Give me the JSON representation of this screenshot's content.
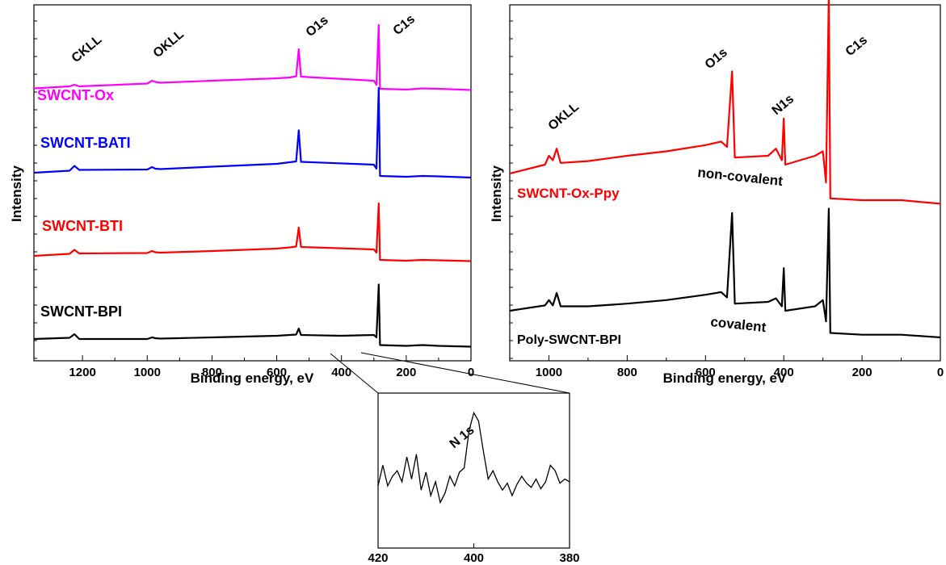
{
  "chart_data": [
    {
      "type": "line",
      "panel": "left",
      "xlabel": "Binding energy, eV",
      "ylabel": "Intensity",
      "xlim": [
        1350,
        0
      ],
      "x_reversed": true,
      "x_ticks": [
        1200,
        1000,
        800,
        600,
        400,
        200,
        0
      ],
      "y_ticks_labeled": false,
      "peak_labels": [
        {
          "text": "CKLL",
          "x": 1225
        },
        {
          "text": "OKLL",
          "x": 980
        },
        {
          "text": "O1s",
          "x": 532
        },
        {
          "text": "C1s",
          "x": 285
        }
      ],
      "series": [
        {
          "name": "SWCNT-Ox",
          "color": "#ff00ff",
          "offset": 3,
          "points": [
            [
              1350,
              0.03
            ],
            [
              1240,
              0.08
            ],
            [
              1225,
              0.12
            ],
            [
              1210,
              0.08
            ],
            [
              1000,
              0.15
            ],
            [
              985,
              0.22
            ],
            [
              975,
              0.19
            ],
            [
              960,
              0.17
            ],
            [
              800,
              0.22
            ],
            [
              600,
              0.28
            ],
            [
              560,
              0.3
            ],
            [
              540,
              0.33
            ],
            [
              532,
              1.0
            ],
            [
              525,
              0.32
            ],
            [
              300,
              0.22
            ],
            [
              292,
              0.12
            ],
            [
              285,
              1.6
            ],
            [
              281,
              0.02
            ],
            [
              200,
              0.0
            ],
            [
              150,
              0.03
            ],
            [
              100,
              0.02
            ],
            [
              0,
              -0.01
            ]
          ]
        },
        {
          "name": "SWCNT-BATI",
          "color": "#0000ff",
          "offset": 2,
          "points": [
            [
              1350,
              0.0
            ],
            [
              1240,
              0.05
            ],
            [
              1225,
              0.17
            ],
            [
              1210,
              0.07
            ],
            [
              1000,
              0.08
            ],
            [
              985,
              0.14
            ],
            [
              975,
              0.1
            ],
            [
              960,
              0.09
            ],
            [
              800,
              0.15
            ],
            [
              600,
              0.22
            ],
            [
              560,
              0.26
            ],
            [
              540,
              0.28
            ],
            [
              532,
              1.05
            ],
            [
              525,
              0.27
            ],
            [
              300,
              0.2
            ],
            [
              292,
              0.1
            ],
            [
              285,
              2.1
            ],
            [
              281,
              -0.08
            ],
            [
              200,
              -0.1
            ],
            [
              150,
              -0.08
            ],
            [
              100,
              -0.09
            ],
            [
              0,
              -0.12
            ]
          ]
        },
        {
          "name": "SWCNT-BTI",
          "color": "#ff0000",
          "offset": 1,
          "points": [
            [
              1350,
              0.0
            ],
            [
              1240,
              0.05
            ],
            [
              1225,
              0.15
            ],
            [
              1210,
              0.06
            ],
            [
              1000,
              0.07
            ],
            [
              985,
              0.12
            ],
            [
              975,
              0.09
            ],
            [
              960,
              0.08
            ],
            [
              800,
              0.12
            ],
            [
              600,
              0.18
            ],
            [
              560,
              0.21
            ],
            [
              540,
              0.23
            ],
            [
              532,
              0.7
            ],
            [
              525,
              0.22
            ],
            [
              300,
              0.16
            ],
            [
              292,
              0.08
            ],
            [
              285,
              1.3
            ],
            [
              281,
              -0.1
            ],
            [
              200,
              -0.12
            ],
            [
              150,
              -0.1
            ],
            [
              100,
              -0.11
            ],
            [
              0,
              -0.13
            ]
          ]
        },
        {
          "name": "SWCNT-BPI",
          "color": "#000000",
          "offset": 0,
          "points": [
            [
              1350,
              0.0
            ],
            [
              1240,
              0.03
            ],
            [
              1225,
              0.12
            ],
            [
              1210,
              0.0
            ],
            [
              1000,
              0.0
            ],
            [
              985,
              0.04
            ],
            [
              975,
              0.02
            ],
            [
              960,
              0.01
            ],
            [
              800,
              0.04
            ],
            [
              600,
              0.08
            ],
            [
              560,
              0.1
            ],
            [
              540,
              0.11
            ],
            [
              532,
              0.26
            ],
            [
              525,
              0.1
            ],
            [
              400,
              0.08
            ],
            [
              300,
              0.1
            ],
            [
              292,
              0.04
            ],
            [
              285,
              1.35
            ],
            [
              281,
              -0.15
            ],
            [
              200,
              -0.17
            ],
            [
              150,
              -0.15
            ],
            [
              100,
              -0.17
            ],
            [
              0,
              -0.19
            ]
          ]
        }
      ]
    },
    {
      "type": "line",
      "panel": "right",
      "xlabel": "Binding energy, eV",
      "ylabel": "Intensity",
      "xlim": [
        1100,
        0
      ],
      "x_reversed": true,
      "x_ticks": [
        1000,
        800,
        600,
        400,
        200,
        0
      ],
      "y_ticks_labeled": false,
      "peak_labels": [
        {
          "text": "OKLL",
          "x": 975
        },
        {
          "text": "O1s",
          "x": 532
        },
        {
          "text": "N1s",
          "x": 400
        },
        {
          "text": "C1s",
          "x": 285
        }
      ],
      "annotations": [
        "non-covalent",
        "covalent"
      ],
      "series": [
        {
          "name": "SWCNT-Ox-Ppy",
          "color": "#ff0000",
          "offset": 1,
          "points": [
            [
              1100,
              0.0
            ],
            [
              1010,
              0.1
            ],
            [
              1000,
              0.2
            ],
            [
              990,
              0.15
            ],
            [
              980,
              0.28
            ],
            [
              970,
              0.12
            ],
            [
              900,
              0.14
            ],
            [
              800,
              0.2
            ],
            [
              700,
              0.25
            ],
            [
              600,
              0.32
            ],
            [
              560,
              0.36
            ],
            [
              545,
              0.3
            ],
            [
              532,
              1.15
            ],
            [
              525,
              0.18
            ],
            [
              440,
              0.2
            ],
            [
              420,
              0.28
            ],
            [
              405,
              0.15
            ],
            [
              400,
              0.62
            ],
            [
              396,
              0.1
            ],
            [
              320,
              0.2
            ],
            [
              300,
              0.25
            ],
            [
              292,
              -0.1
            ],
            [
              285,
              2.0
            ],
            [
              281,
              -0.28
            ],
            [
              200,
              -0.3
            ],
            [
              100,
              -0.3
            ],
            [
              0,
              -0.34
            ]
          ]
        },
        {
          "name": "Poly-SWCNT-BPI",
          "color": "#000000",
          "offset": 0,
          "points": [
            [
              1100,
              0.0
            ],
            [
              1010,
              0.06
            ],
            [
              1000,
              0.12
            ],
            [
              990,
              0.06
            ],
            [
              980,
              0.2
            ],
            [
              970,
              0.05
            ],
            [
              900,
              0.05
            ],
            [
              800,
              0.08
            ],
            [
              700,
              0.12
            ],
            [
              600,
              0.18
            ],
            [
              560,
              0.21
            ],
            [
              545,
              0.15
            ],
            [
              532,
              1.1
            ],
            [
              525,
              0.08
            ],
            [
              440,
              0.1
            ],
            [
              420,
              0.14
            ],
            [
              405,
              0.05
            ],
            [
              400,
              0.48
            ],
            [
              396,
              0.0
            ],
            [
              320,
              0.05
            ],
            [
              300,
              0.12
            ],
            [
              292,
              -0.12
            ],
            [
              285,
              1.15
            ],
            [
              281,
              -0.25
            ],
            [
              200,
              -0.27
            ],
            [
              100,
              -0.27
            ],
            [
              0,
              -0.3
            ]
          ]
        }
      ]
    },
    {
      "type": "line",
      "panel": "inset",
      "xlim": [
        420,
        380
      ],
      "x_reversed": true,
      "x_ticks": [
        420,
        400,
        380
      ],
      "peak_label": "N 1s",
      "series": [
        {
          "name": "",
          "color": "#000000",
          "points": [
            [
              420,
              0.45
            ],
            [
              419,
              0.6
            ],
            [
              418,
              0.45
            ],
            [
              417,
              0.52
            ],
            [
              416,
              0.56
            ],
            [
              415,
              0.48
            ],
            [
              414,
              0.66
            ],
            [
              413,
              0.5
            ],
            [
              412,
              0.68
            ],
            [
              411,
              0.42
            ],
            [
              410,
              0.55
            ],
            [
              409,
              0.38
            ],
            [
              408,
              0.48
            ],
            [
              407,
              0.33
            ],
            [
              406,
              0.4
            ],
            [
              405,
              0.52
            ],
            [
              404,
              0.45
            ],
            [
              403,
              0.55
            ],
            [
              402,
              0.58
            ],
            [
              401,
              0.85
            ],
            [
              400,
              0.98
            ],
            [
              399,
              0.92
            ],
            [
              398,
              0.7
            ],
            [
              397,
              0.5
            ],
            [
              396,
              0.56
            ],
            [
              395,
              0.48
            ],
            [
              394,
              0.42
            ],
            [
              393,
              0.47
            ],
            [
              392,
              0.38
            ],
            [
              391,
              0.46
            ],
            [
              390,
              0.52
            ],
            [
              389,
              0.47
            ],
            [
              388,
              0.44
            ],
            [
              387,
              0.5
            ],
            [
              386,
              0.43
            ],
            [
              385,
              0.48
            ],
            [
              384,
              0.6
            ],
            [
              383,
              0.56
            ],
            [
              382,
              0.47
            ],
            [
              381,
              0.5
            ],
            [
              380,
              0.48
            ]
          ]
        }
      ]
    }
  ]
}
